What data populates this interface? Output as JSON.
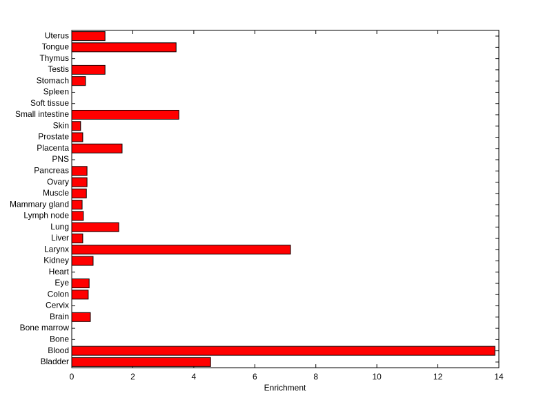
{
  "chart_data": {
    "type": "barh",
    "xlabel": "Enrichment",
    "categories": [
      "Bladder",
      "Blood",
      "Bone",
      "Bone marrow",
      "Brain",
      "Cervix",
      "Colon",
      "Eye",
      "Heart",
      "Kidney",
      "Larynx",
      "Liver",
      "Lung",
      "Lymph node",
      "Mammary gland",
      "Muscle",
      "Ovary",
      "Pancreas",
      "PNS",
      "Placenta",
      "Prostate",
      "Skin",
      "Small intestine",
      "Soft tissue",
      "Spleen",
      "Stomach",
      "Testis",
      "Thymus",
      "Tongue",
      "Uterus"
    ],
    "values": [
      4.55,
      13.87,
      0,
      0,
      0.61,
      0,
      0.54,
      0.57,
      0,
      0.7,
      7.17,
      0.36,
      1.54,
      0.38,
      0.34,
      0.48,
      0.5,
      0.5,
      0,
      1.65,
      0.36,
      0.29,
      3.51,
      0,
      0,
      0.45,
      1.09,
      0,
      3.42,
      1.09
    ],
    "color": "#ff0000",
    "xlim": [
      0,
      14
    ],
    "xticks": [
      0,
      2,
      4,
      6,
      8,
      10,
      12,
      14
    ]
  }
}
